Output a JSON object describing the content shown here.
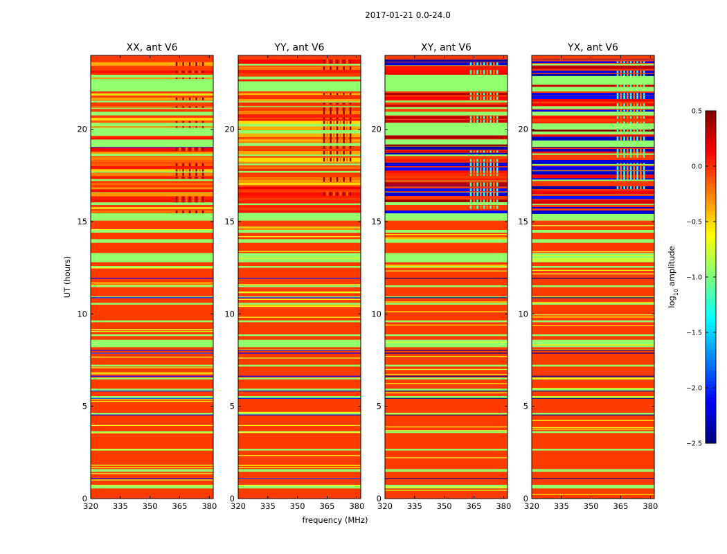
{
  "figure": {
    "suptitle": "2017-01-21 0.0-24.0"
  },
  "chart_data": {
    "type": "heatmap",
    "title": "2017-01-21 0.0-24.0",
    "xlabel": "frequency (MHz)",
    "ylabel": "UT (hours)",
    "xlim": [
      320,
      382
    ],
    "ylim": [
      0,
      24
    ],
    "xticks": [
      320,
      335,
      350,
      365,
      380
    ],
    "yticks": [
      0,
      5,
      10,
      15,
      20
    ],
    "colorbar": {
      "label_prefix": "log",
      "label_sub": "10",
      "label_suffix": " amplitude",
      "range": [
        -2.5,
        0.5
      ],
      "ticks": [
        "0.5",
        "0.0",
        "−0.5",
        "−1.0",
        "−1.5",
        "−2.0",
        "−2.5"
      ],
      "tick_values": [
        0.5,
        0.0,
        -0.5,
        -1.0,
        -1.5,
        -2.0,
        -2.5
      ],
      "colormap": "jet"
    },
    "panels": [
      {
        "title": "XX, ant V6",
        "kind": "auto",
        "seed": 7
      },
      {
        "title": "YY, ant V6",
        "kind": "auto",
        "seed": 13
      },
      {
        "title": "XY, ant V6",
        "kind": "cross",
        "seed": 29
      },
      {
        "title": "YX, ant V6",
        "kind": "cross",
        "seed": 41
      }
    ],
    "rfi_band_mhz": [
      363,
      378
    ],
    "masked_value": -0.95,
    "baseline_value": -0.05,
    "gap_hours": [
      [
        0.55,
        0.75
      ],
      [
        1.45,
        1.6
      ],
      [
        2.6,
        2.7
      ],
      [
        3.55,
        3.65
      ],
      [
        4.55,
        4.65
      ],
      [
        5.4,
        5.55
      ],
      [
        5.85,
        5.95
      ],
      [
        6.45,
        6.55
      ],
      [
        7.15,
        7.25
      ],
      [
        8.2,
        8.6
      ],
      [
        8.8,
        8.9
      ],
      [
        9.55,
        9.65
      ],
      [
        10.5,
        10.6
      ],
      [
        10.85,
        10.95
      ],
      [
        11.45,
        11.55
      ],
      [
        12.5,
        12.6
      ],
      [
        12.8,
        13.3
      ],
      [
        13.85,
        14.05
      ],
      [
        14.4,
        14.55
      ],
      [
        15.05,
        15.55
      ],
      [
        15.9,
        16.05
      ],
      [
        16.45,
        16.6
      ],
      [
        17.2,
        17.3
      ],
      [
        17.65,
        17.75
      ],
      [
        18.05,
        18.15
      ],
      [
        18.55,
        18.7
      ],
      [
        19.05,
        19.45
      ],
      [
        19.65,
        20.35
      ],
      [
        20.75,
        20.95
      ],
      [
        21.1,
        21.25
      ],
      [
        21.45,
        21.55
      ],
      [
        22.05,
        22.95
      ],
      [
        23.45,
        23.55
      ]
    ],
    "flagged_rows_hours": [
      1.1,
      4.55,
      5.45,
      5.85,
      6.65,
      7.9,
      8.05,
      10.9,
      11.95,
      19.05
    ]
  }
}
